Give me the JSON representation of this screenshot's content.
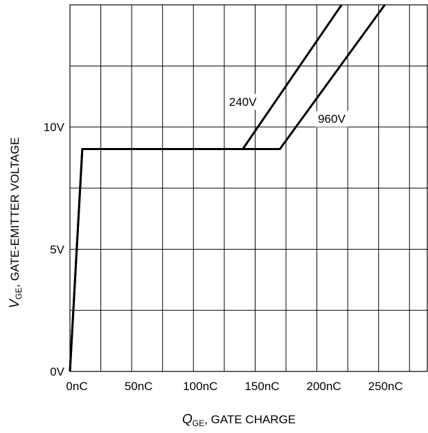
{
  "chart_data": {
    "type": "line",
    "xlabel": {
      "symbol": "Q",
      "subscript": "GE",
      "text": ", GATE CHARGE"
    },
    "ylabel": {
      "symbol": "V",
      "subscript": "GE",
      "text": ", GATE-EMITTER VOLTAGE"
    },
    "x_unit": "nC",
    "y_unit": "V",
    "xlim": [
      0,
      290
    ],
    "ylim": [
      0,
      15
    ],
    "x_grid_step": 25,
    "y_grid_step": 2.5,
    "grid": true,
    "x_tick_labels": [
      {
        "value": 0,
        "label": "0nC"
      },
      {
        "value": 50,
        "label": "50nC"
      },
      {
        "value": 100,
        "label": "100nC"
      },
      {
        "value": 150,
        "label": "150nC"
      },
      {
        "value": 200,
        "label": "200nC"
      },
      {
        "value": 250,
        "label": "250nC"
      }
    ],
    "y_tick_labels": [
      {
        "value": 0,
        "label": "0V"
      },
      {
        "value": 5,
        "label": "5V"
      },
      {
        "value": 10,
        "label": "10V"
      }
    ],
    "series": [
      {
        "name": "240V",
        "x": [
          0,
          10,
          140,
          220
        ],
        "y": [
          0,
          9.1,
          9.1,
          15
        ],
        "label_at": [
          140,
          11.0
        ]
      },
      {
        "name": "960V",
        "x": [
          0,
          10,
          170,
          255
        ],
        "y": [
          0,
          9.1,
          9.1,
          15
        ],
        "label_at": [
          212,
          10.3
        ]
      }
    ]
  }
}
